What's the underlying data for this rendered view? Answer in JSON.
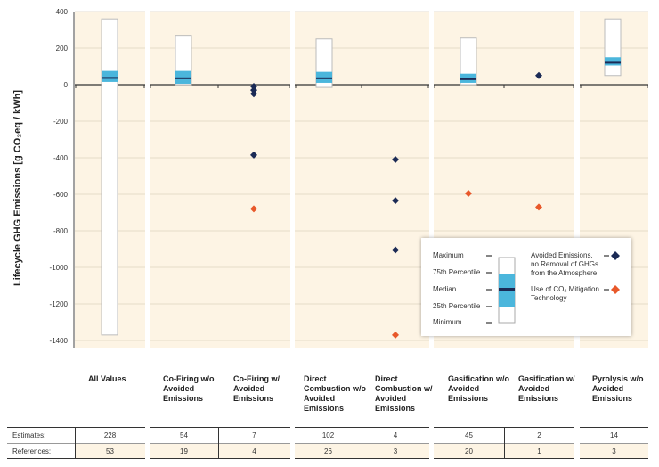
{
  "chart_data": {
    "type": "box",
    "ylabel": "Lifecycle GHG Emissions [g CO₂eq / kWh]",
    "ylim": [
      -1400,
      400
    ],
    "yticks": [
      400,
      200,
      0,
      -200,
      -400,
      -600,
      -800,
      -1000,
      -1200,
      -1400
    ],
    "grid": true,
    "colors": {
      "background": "#fdf4e4",
      "iqr": "#4bb6dc",
      "median": "#1b2a55",
      "avoided": "#1b2a55",
      "mitigation": "#e8582a"
    },
    "categories": [
      {
        "label": "All Values",
        "box": {
          "max": 360,
          "q75": 75,
          "median": 37,
          "q25": 15,
          "min": -1370
        },
        "points": []
      },
      {
        "label": "Co-Firing w/o Avoided Emissions",
        "box": {
          "max": 270,
          "q75": 75,
          "median": 35,
          "q25": 5,
          "min": 0
        },
        "points": []
      },
      {
        "label": "Co-Firing w/ Avoided Emissions",
        "box": null,
        "points": [
          {
            "y": -10,
            "type": "avoided"
          },
          {
            "y": -30,
            "type": "avoided"
          },
          {
            "y": -50,
            "type": "avoided"
          },
          {
            "y": -385,
            "type": "avoided"
          },
          {
            "y": -680,
            "type": "mitigation"
          }
        ]
      },
      {
        "label": "Direct Combustion w/o Avoided Emissions",
        "box": {
          "max": 250,
          "q75": 70,
          "median": 35,
          "q25": 10,
          "min": -15
        },
        "points": []
      },
      {
        "label": "Direct Combustion w/ Avoided Emissions",
        "box": null,
        "points": [
          {
            "y": -410,
            "type": "avoided"
          },
          {
            "y": -635,
            "type": "avoided"
          },
          {
            "y": -905,
            "type": "avoided"
          },
          {
            "y": -1370,
            "type": "mitigation"
          }
        ]
      },
      {
        "label": "Gasification w/o Avoided Emissions",
        "box": {
          "max": 255,
          "q75": 60,
          "median": 30,
          "q25": 10,
          "min": 0
        },
        "points": [
          {
            "y": -595,
            "type": "mitigation"
          }
        ]
      },
      {
        "label": "Gasification w/ Avoided Emissions",
        "box": null,
        "points": [
          {
            "y": 50,
            "type": "avoided"
          },
          {
            "y": -670,
            "type": "mitigation"
          }
        ]
      },
      {
        "label": "Pyrolysis w/o Avoided Emissions",
        "box": {
          "max": 360,
          "q75": 150,
          "median": 120,
          "q25": 105,
          "min": 50
        },
        "points": []
      }
    ],
    "legend": {
      "placement": "bottom-right",
      "box_labels": [
        "Maximum",
        "75th Percentile",
        "Median",
        "25th Percentile",
        "Minimum"
      ],
      "avoided_label": "Avoided Emissions, no Removal of GHGs from the Atmosphere",
      "mitigation_label": "Use of CO₂ Mitigation Technology"
    },
    "table": {
      "rows": [
        {
          "label": "Estimates:",
          "values": [
            "228",
            "54",
            "7",
            "102",
            "4",
            "45",
            "2",
            "14"
          ]
        },
        {
          "label": "References:",
          "values": [
            "53",
            "19",
            "4",
            "26",
            "3",
            "20",
            "1",
            "3"
          ]
        }
      ]
    }
  }
}
